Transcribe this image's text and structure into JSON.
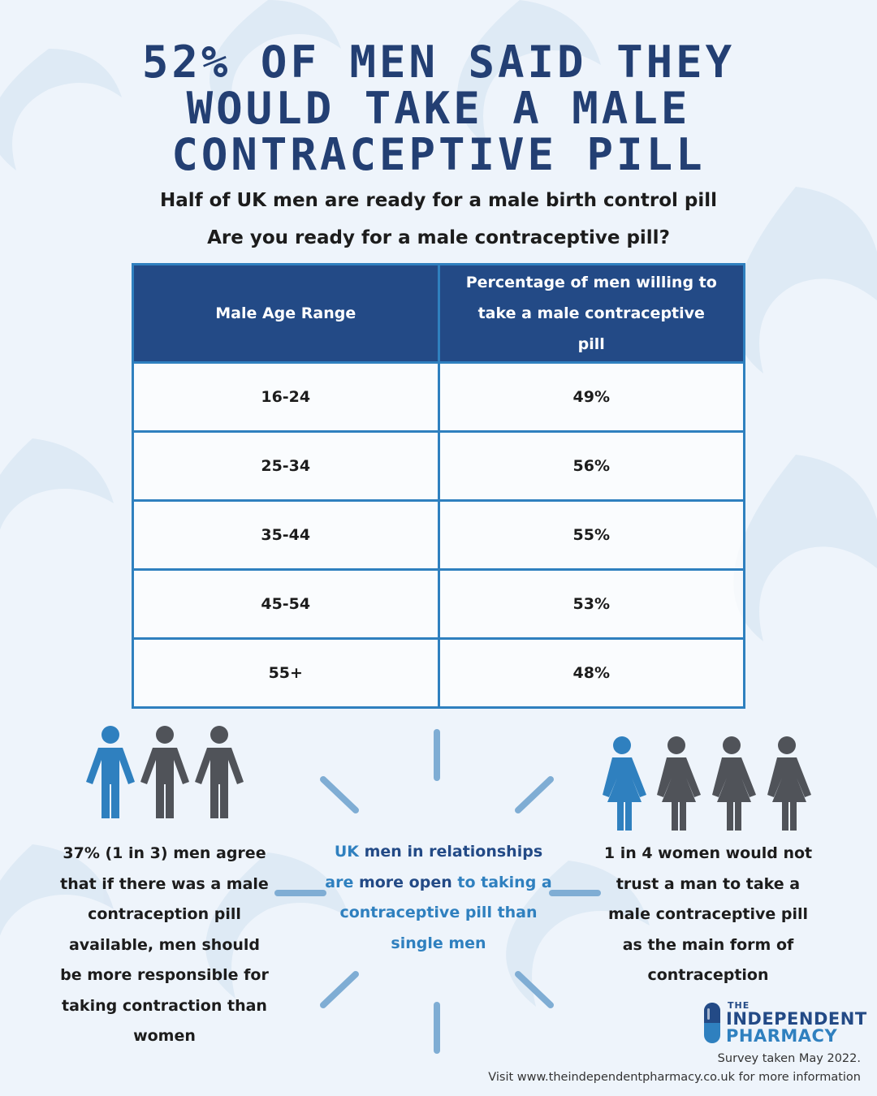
{
  "title": {
    "line1": "52% OF MEN SAID THEY",
    "line2": "WOULD TAKE A MALE",
    "line3": "CONTRACEPTIVE PILL"
  },
  "subtitle": "Half of UK men are ready for a male birth control pill",
  "question": "Are you ready for a male contraceptive pill?",
  "table": {
    "headers": [
      "Male Age Range",
      "Percentage of men willing to take a male contraceptive pill"
    ],
    "rows": [
      {
        "age": "16-24",
        "pct": "49%"
      },
      {
        "age": "25-34",
        "pct": "56%"
      },
      {
        "age": "35-44",
        "pct": "55%"
      },
      {
        "age": "45-54",
        "pct": "53%"
      },
      {
        "age": "55+",
        "pct": "48%"
      }
    ]
  },
  "stats": {
    "men": "37% (1 in 3) men agree that if there was a male contraception pill available, men should be more responsible for taking contraction than women",
    "center": {
      "part1": "UK",
      "part2": "men in relationships",
      "part3": "are",
      "part4": "more open",
      "part5": "to taking a contraceptive pill than single men"
    },
    "women": "1 in 4 women would not trust a man to take a male contraceptive pill as the main form of contraception"
  },
  "icons": {
    "men_group": "man-figure-icon",
    "women_group": "woman-figure-icon",
    "highlight_color": "#2f80bf",
    "muted_color": "#505359"
  },
  "logo": {
    "small": "THE",
    "line1": "INDEPENDENT",
    "line2": "PHARMACY"
  },
  "footer": {
    "survey": "Survey taken May 2022.",
    "visit": "Visit www.theindependentpharmacy.co.uk for more information"
  }
}
